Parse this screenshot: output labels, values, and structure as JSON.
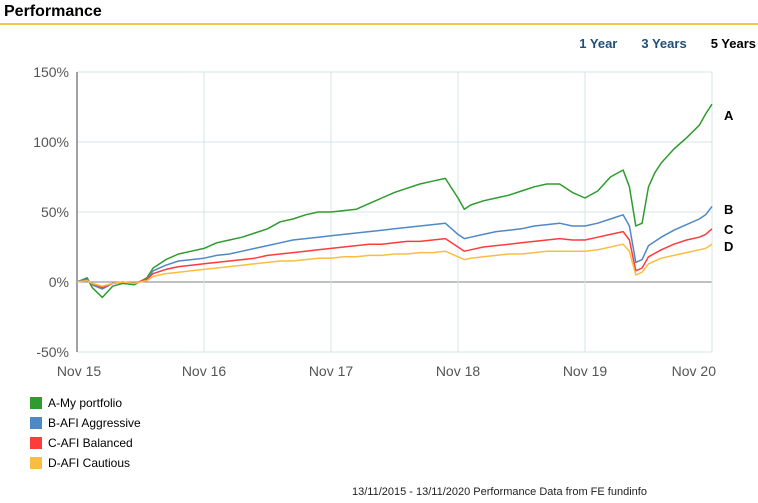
{
  "header": {
    "title": "Performance"
  },
  "period_tabs": [
    {
      "label": "1 Year",
      "active": false
    },
    {
      "label": "3 Years",
      "active": false
    },
    {
      "label": "5 Years",
      "active": true
    }
  ],
  "footer_note": "13/11/2015 - 13/11/2020 Performance Data from FE fundinfo",
  "colors": {
    "A": "#2e9b2e",
    "B": "#4f88c6",
    "C": "#ff3b3b",
    "D": "#f9bd45",
    "accent_rule": "#f2c94c",
    "tab_link": "#1f4e79"
  },
  "legend": [
    {
      "key": "A",
      "label": "A-My portfolio"
    },
    {
      "key": "B",
      "label": "B-AFI Aggressive"
    },
    {
      "key": "C",
      "label": "C-AFI Balanced"
    },
    {
      "key": "D",
      "label": "D-AFI Cautious"
    }
  ],
  "chart_data": {
    "type": "line",
    "title": "",
    "xlabel": "",
    "ylabel": "",
    "x_ticks": [
      "Nov 15",
      "Nov 16",
      "Nov 17",
      "Nov 18",
      "Nov 19",
      "Nov 20"
    ],
    "y_ticks": [
      "150%",
      "100%",
      "50%",
      "0%",
      "-50%"
    ],
    "ylim": [
      -50,
      150
    ],
    "x_unit": "years since Nov 15",
    "grid": true,
    "legend_placement": "bottom-left",
    "end_labels": [
      "A",
      "B",
      "C",
      "D"
    ],
    "series": [
      {
        "key": "A",
        "name": "A-My portfolio",
        "points": [
          [
            0,
            0
          ],
          [
            0.08,
            3
          ],
          [
            0.12,
            -4
          ],
          [
            0.2,
            -11
          ],
          [
            0.28,
            -3
          ],
          [
            0.36,
            -1
          ],
          [
            0.45,
            -2
          ],
          [
            0.55,
            3
          ],
          [
            0.6,
            10
          ],
          [
            0.7,
            16
          ],
          [
            0.8,
            20
          ],
          [
            0.9,
            22
          ],
          [
            1.0,
            24
          ],
          [
            1.1,
            28
          ],
          [
            1.2,
            30
          ],
          [
            1.3,
            32
          ],
          [
            1.4,
            35
          ],
          [
            1.5,
            38
          ],
          [
            1.6,
            43
          ],
          [
            1.7,
            45
          ],
          [
            1.8,
            48
          ],
          [
            1.9,
            50
          ],
          [
            2.0,
            50
          ],
          [
            2.1,
            51
          ],
          [
            2.2,
            52
          ],
          [
            2.3,
            56
          ],
          [
            2.4,
            60
          ],
          [
            2.5,
            64
          ],
          [
            2.6,
            67
          ],
          [
            2.7,
            70
          ],
          [
            2.8,
            72
          ],
          [
            2.9,
            74
          ],
          [
            3.0,
            60
          ],
          [
            3.05,
            52
          ],
          [
            3.1,
            55
          ],
          [
            3.2,
            58
          ],
          [
            3.3,
            60
          ],
          [
            3.4,
            62
          ],
          [
            3.5,
            65
          ],
          [
            3.6,
            68
          ],
          [
            3.7,
            70
          ],
          [
            3.8,
            70
          ],
          [
            3.9,
            64
          ],
          [
            4.0,
            60
          ],
          [
            4.1,
            65
          ],
          [
            4.2,
            75
          ],
          [
            4.3,
            80
          ],
          [
            4.35,
            68
          ],
          [
            4.4,
            40
          ],
          [
            4.45,
            42
          ],
          [
            4.5,
            68
          ],
          [
            4.55,
            78
          ],
          [
            4.6,
            85
          ],
          [
            4.7,
            95
          ],
          [
            4.8,
            103
          ],
          [
            4.9,
            112
          ],
          [
            4.95,
            120
          ],
          [
            5.0,
            127
          ]
        ]
      },
      {
        "key": "B",
        "name": "B-AFI Aggressive",
        "points": [
          [
            0,
            0
          ],
          [
            0.08,
            2
          ],
          [
            0.12,
            -2
          ],
          [
            0.2,
            -5
          ],
          [
            0.28,
            -1
          ],
          [
            0.36,
            0
          ],
          [
            0.45,
            -1
          ],
          [
            0.55,
            2
          ],
          [
            0.6,
            8
          ],
          [
            0.7,
            12
          ],
          [
            0.8,
            15
          ],
          [
            0.9,
            16
          ],
          [
            1.0,
            17
          ],
          [
            1.1,
            19
          ],
          [
            1.2,
            20
          ],
          [
            1.3,
            22
          ],
          [
            1.4,
            24
          ],
          [
            1.5,
            26
          ],
          [
            1.6,
            28
          ],
          [
            1.7,
            30
          ],
          [
            1.8,
            31
          ],
          [
            1.9,
            32
          ],
          [
            2.0,
            33
          ],
          [
            2.1,
            34
          ],
          [
            2.2,
            35
          ],
          [
            2.3,
            36
          ],
          [
            2.4,
            37
          ],
          [
            2.5,
            38
          ],
          [
            2.6,
            39
          ],
          [
            2.7,
            40
          ],
          [
            2.8,
            41
          ],
          [
            2.9,
            42
          ],
          [
            3.0,
            34
          ],
          [
            3.05,
            31
          ],
          [
            3.1,
            32
          ],
          [
            3.2,
            34
          ],
          [
            3.3,
            36
          ],
          [
            3.4,
            37
          ],
          [
            3.5,
            38
          ],
          [
            3.6,
            40
          ],
          [
            3.7,
            41
          ],
          [
            3.8,
            42
          ],
          [
            3.9,
            40
          ],
          [
            4.0,
            40
          ],
          [
            4.1,
            42
          ],
          [
            4.2,
            45
          ],
          [
            4.3,
            48
          ],
          [
            4.35,
            40
          ],
          [
            4.4,
            14
          ],
          [
            4.45,
            16
          ],
          [
            4.5,
            26
          ],
          [
            4.6,
            32
          ],
          [
            4.7,
            37
          ],
          [
            4.8,
            41
          ],
          [
            4.9,
            45
          ],
          [
            4.95,
            48
          ],
          [
            5.0,
            54
          ]
        ]
      },
      {
        "key": "C",
        "name": "C-AFI Balanced",
        "points": [
          [
            0,
            0
          ],
          [
            0.08,
            1
          ],
          [
            0.12,
            -1
          ],
          [
            0.2,
            -4
          ],
          [
            0.28,
            -1
          ],
          [
            0.36,
            0
          ],
          [
            0.45,
            -1
          ],
          [
            0.55,
            2
          ],
          [
            0.6,
            6
          ],
          [
            0.7,
            9
          ],
          [
            0.8,
            11
          ],
          [
            0.9,
            12
          ],
          [
            1.0,
            13
          ],
          [
            1.1,
            14
          ],
          [
            1.2,
            15
          ],
          [
            1.3,
            16
          ],
          [
            1.4,
            17
          ],
          [
            1.5,
            19
          ],
          [
            1.6,
            20
          ],
          [
            1.7,
            21
          ],
          [
            1.8,
            22
          ],
          [
            1.9,
            23
          ],
          [
            2.0,
            24
          ],
          [
            2.1,
            25
          ],
          [
            2.2,
            26
          ],
          [
            2.3,
            27
          ],
          [
            2.4,
            27
          ],
          [
            2.5,
            28
          ],
          [
            2.6,
            29
          ],
          [
            2.7,
            29
          ],
          [
            2.8,
            30
          ],
          [
            2.9,
            31
          ],
          [
            3.0,
            25
          ],
          [
            3.05,
            22
          ],
          [
            3.1,
            23
          ],
          [
            3.2,
            25
          ],
          [
            3.3,
            26
          ],
          [
            3.4,
            27
          ],
          [
            3.5,
            28
          ],
          [
            3.6,
            29
          ],
          [
            3.7,
            30
          ],
          [
            3.8,
            31
          ],
          [
            3.9,
            30
          ],
          [
            4.0,
            30
          ],
          [
            4.1,
            32
          ],
          [
            4.2,
            34
          ],
          [
            4.3,
            36
          ],
          [
            4.35,
            30
          ],
          [
            4.4,
            8
          ],
          [
            4.45,
            10
          ],
          [
            4.5,
            18
          ],
          [
            4.6,
            23
          ],
          [
            4.7,
            27
          ],
          [
            4.8,
            30
          ],
          [
            4.9,
            32
          ],
          [
            4.95,
            34
          ],
          [
            5.0,
            38
          ]
        ]
      },
      {
        "key": "D",
        "name": "D-AFI Cautious",
        "points": [
          [
            0,
            0
          ],
          [
            0.08,
            1
          ],
          [
            0.12,
            -1
          ],
          [
            0.2,
            -3
          ],
          [
            0.28,
            -1
          ],
          [
            0.36,
            0
          ],
          [
            0.45,
            -1
          ],
          [
            0.55,
            1
          ],
          [
            0.6,
            4
          ],
          [
            0.7,
            6
          ],
          [
            0.8,
            7
          ],
          [
            0.9,
            8
          ],
          [
            1.0,
            9
          ],
          [
            1.1,
            10
          ],
          [
            1.2,
            11
          ],
          [
            1.3,
            12
          ],
          [
            1.4,
            13
          ],
          [
            1.5,
            14
          ],
          [
            1.6,
            15
          ],
          [
            1.7,
            15
          ],
          [
            1.8,
            16
          ],
          [
            1.9,
            17
          ],
          [
            2.0,
            17
          ],
          [
            2.1,
            18
          ],
          [
            2.2,
            18
          ],
          [
            2.3,
            19
          ],
          [
            2.4,
            19
          ],
          [
            2.5,
            20
          ],
          [
            2.6,
            20
          ],
          [
            2.7,
            21
          ],
          [
            2.8,
            21
          ],
          [
            2.9,
            22
          ],
          [
            3.0,
            18
          ],
          [
            3.05,
            16
          ],
          [
            3.1,
            17
          ],
          [
            3.2,
            18
          ],
          [
            3.3,
            19
          ],
          [
            3.4,
            20
          ],
          [
            3.5,
            20
          ],
          [
            3.6,
            21
          ],
          [
            3.7,
            22
          ],
          [
            3.8,
            22
          ],
          [
            3.9,
            22
          ],
          [
            4.0,
            22
          ],
          [
            4.1,
            23
          ],
          [
            4.2,
            25
          ],
          [
            4.3,
            27
          ],
          [
            4.35,
            22
          ],
          [
            4.4,
            5
          ],
          [
            4.45,
            7
          ],
          [
            4.5,
            13
          ],
          [
            4.6,
            17
          ],
          [
            4.7,
            19
          ],
          [
            4.8,
            21
          ],
          [
            4.9,
            23
          ],
          [
            4.95,
            24
          ],
          [
            5.0,
            27
          ]
        ]
      }
    ]
  }
}
